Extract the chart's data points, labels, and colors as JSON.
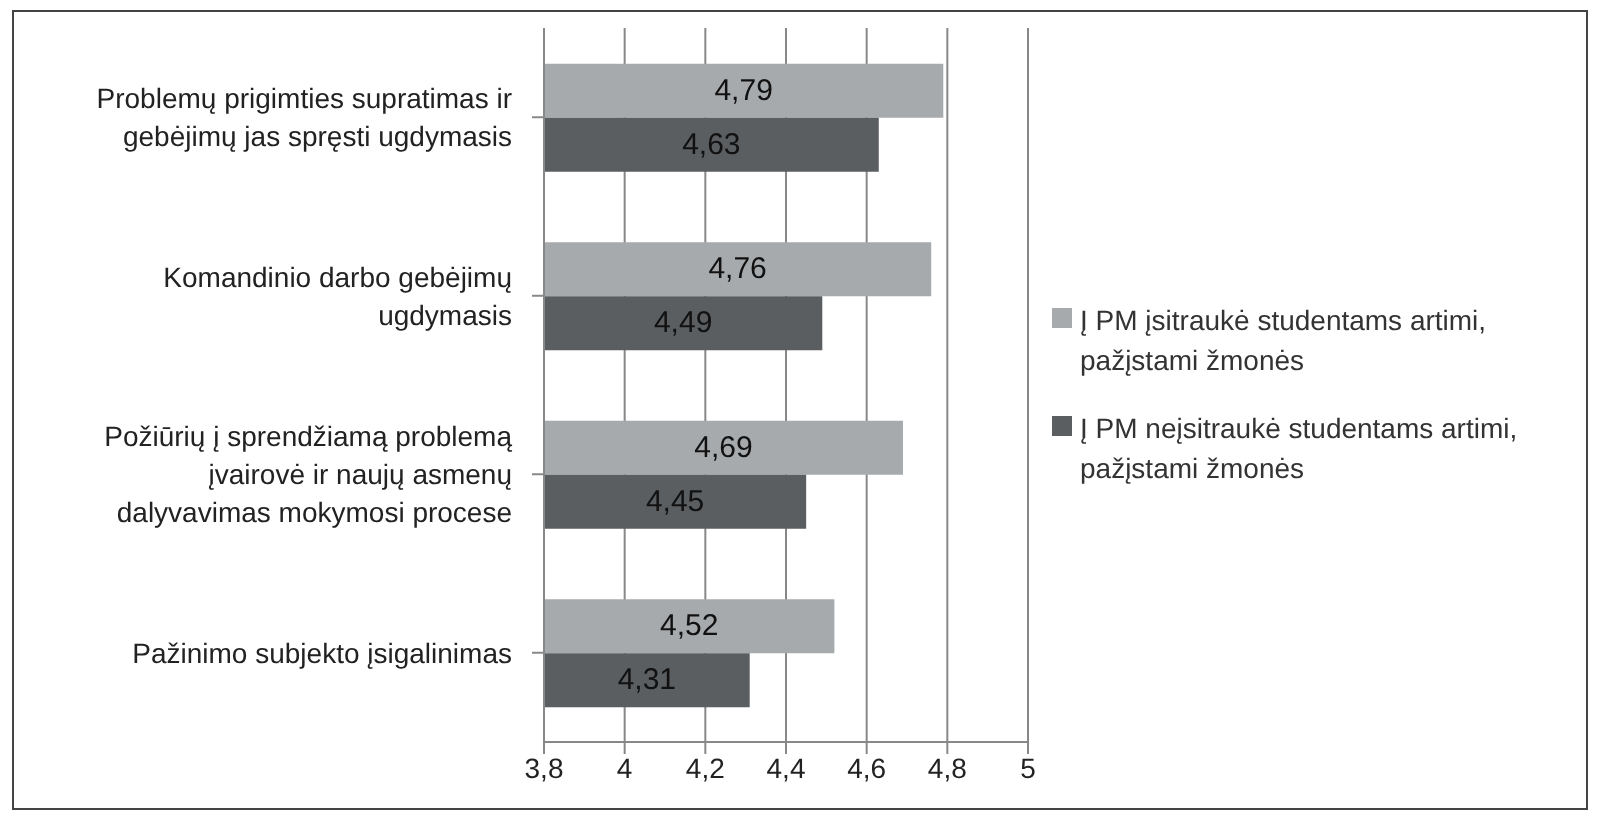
{
  "chart_data": {
    "type": "bar",
    "orientation": "horizontal",
    "categories": [
      "Problemų prigimties supratimas ir gebėjimų jas spręsti ugdymasis",
      "Komandinio darbo gebėjimų ugdymasis",
      "Požiūrių į sprendžiamą problemą įvairovė ir naujų asmenų dalyvavimas mokymosi procese",
      "Pažinimo subjekto įsigalinimas"
    ],
    "series": [
      {
        "name": "Į PM įsitraukė studentams artimi, pažįstami žmonės",
        "color": "#a7aaad",
        "values": [
          4.79,
          4.76,
          4.69,
          4.52
        ],
        "value_labels": [
          "4,79",
          "4,76",
          "4,69",
          "4,52"
        ]
      },
      {
        "name": "Į PM neįsitraukė studentams artimi, pažįstami žmonės",
        "color": "#5b5e61",
        "values": [
          4.63,
          4.49,
          4.45,
          4.31
        ],
        "value_labels": [
          "4,63",
          "4,49",
          "4,45",
          "4,31"
        ]
      }
    ],
    "xlim": [
      3.8,
      5
    ],
    "xticks": [
      {
        "value": 3.8,
        "label": "3,8"
      },
      4,
      {
        "value": 4.2,
        "label": "4,2"
      },
      {
        "value": 4.4,
        "label": "4,4"
      },
      {
        "value": 4.6,
        "label": "4,6"
      },
      {
        "value": 4.8,
        "label": "4,8"
      },
      5
    ],
    "grid": "x",
    "legend": "right"
  }
}
